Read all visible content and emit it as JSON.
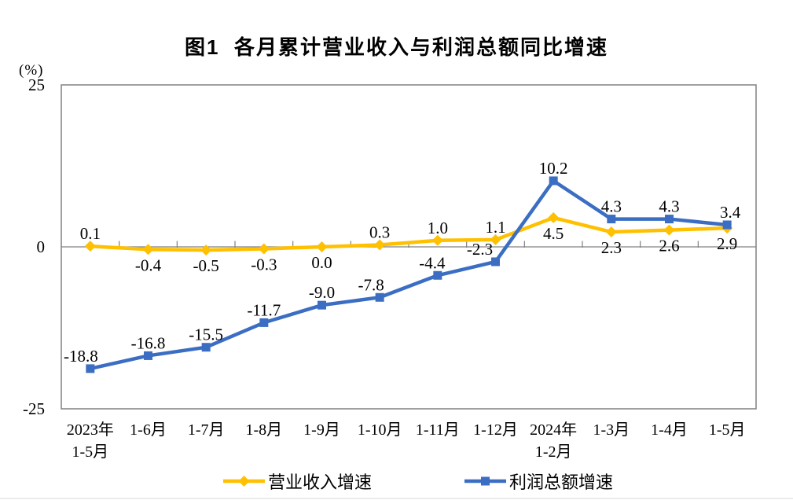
{
  "chart_data": {
    "type": "line",
    "title": "图1  各月累计营业收入与利润总额同比增速",
    "unit_label": "(%)",
    "categories": [
      [
        "2023年",
        "1-5月"
      ],
      [
        "1-6月"
      ],
      [
        "1-7月"
      ],
      [
        "1-8月"
      ],
      [
        "1-9月"
      ],
      [
        "1-10月"
      ],
      [
        "1-11月"
      ],
      [
        "1-12月"
      ],
      [
        "2024年",
        "1-2月"
      ],
      [
        "1-3月"
      ],
      [
        "1-4月"
      ],
      [
        "1-5月"
      ]
    ],
    "ylim": [
      -25,
      25
    ],
    "yticks": [
      25,
      0,
      -25
    ],
    "grid": false,
    "legend_position": "bottom",
    "axis_color": "#808080",
    "label_color": "#000000",
    "series": [
      {
        "name": "营业收入增速",
        "color": "#FFC000",
        "marker": "diamond",
        "values": [
          0.1,
          -0.4,
          -0.5,
          -0.3,
          0.0,
          0.3,
          1.0,
          1.1,
          4.5,
          2.3,
          2.6,
          2.9
        ],
        "label_positions": [
          "above",
          "below",
          "below",
          "below",
          "below",
          "above",
          "above",
          "above",
          "below",
          "below",
          "below",
          "below"
        ],
        "label_dx": [
          0,
          0,
          0,
          0,
          0,
          0,
          0,
          0,
          0,
          0,
          0,
          0
        ]
      },
      {
        "name": "利润总额增速",
        "color": "#3B6EC3",
        "marker": "square",
        "values": [
          -18.8,
          -16.8,
          -15.5,
          -11.7,
          -9.0,
          -7.8,
          -4.4,
          -2.3,
          10.2,
          4.3,
          4.3,
          3.4
        ],
        "label_positions": [
          "above",
          "above",
          "above",
          "above",
          "above",
          "above",
          "above",
          "above",
          "above",
          "above",
          "above",
          "above"
        ],
        "label_dx": [
          -12,
          0,
          0,
          0,
          0,
          -11,
          -7,
          -20,
          0,
          0,
          0,
          4
        ]
      }
    ]
  }
}
